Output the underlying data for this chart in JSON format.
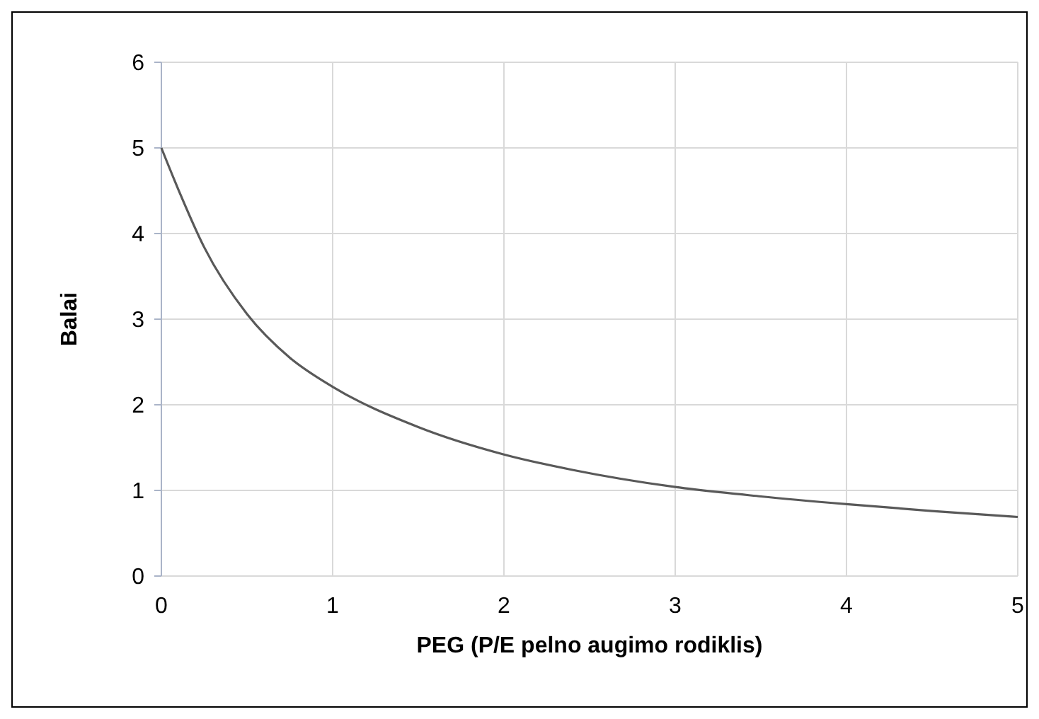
{
  "chart_data": {
    "type": "line",
    "xlabel": "PEG (P/E pelno augimo rodiklis)",
    "ylabel": "Balai",
    "series": [
      {
        "color": "#595959",
        "x": [
          0,
          0.1,
          0.25,
          0.5,
          0.75,
          1,
          1.5,
          2,
          2.4,
          3,
          3.5,
          4,
          4.5,
          5
        ],
        "values": [
          5,
          4.51,
          3.84,
          3.06,
          2.55,
          2.21,
          1.74,
          1.42,
          1.24,
          1.04,
          0.93,
          0.84,
          0.76,
          0.69
        ]
      }
    ],
    "xlim": [
      0,
      5
    ],
    "xticks": [
      0,
      1,
      2,
      3,
      4,
      5
    ],
    "ylim": [
      0,
      6
    ],
    "yticks": [
      0,
      1,
      2,
      3,
      4,
      5,
      6
    ],
    "grid": true,
    "marker": "none",
    "line_style": "solid"
  }
}
